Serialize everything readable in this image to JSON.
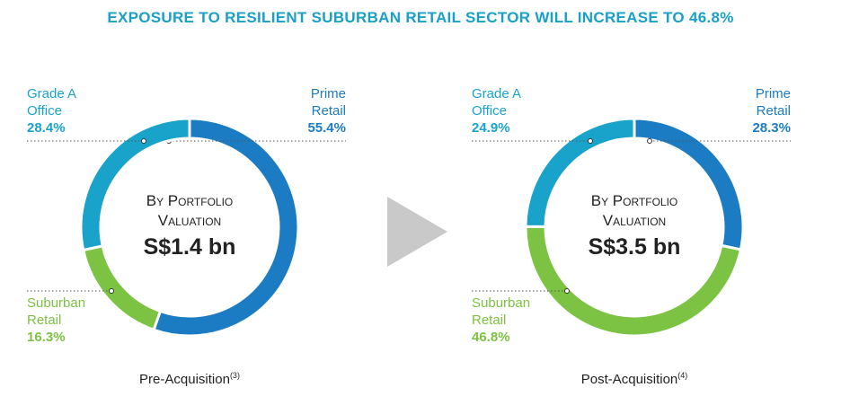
{
  "header": {
    "title": "EXPOSURE TO RESILIENT SUBURBAN RETAIL SECTOR WILL INCREASE TO 46.8%"
  },
  "chart_data": [
    {
      "type": "donut",
      "center_label": "By Portfolio Valuation",
      "center_value": "S$1.4 bn",
      "caption": "Pre-Acquisition",
      "footnote": "(3)",
      "categories": [
        "Prime Retail",
        "Suburban Retail",
        "Grade A Office"
      ],
      "values": [
        55.4,
        16.3,
        28.4
      ],
      "value_labels": [
        "55.4%",
        "16.3%",
        "28.4%"
      ],
      "colors": [
        "#1b7cc4",
        "#7cc243",
        "#1aa3ca"
      ]
    },
    {
      "type": "donut",
      "center_label": "By Portfolio Valuation",
      "center_value": "S$3.5 bn",
      "caption": "Post-Acquisition",
      "footnote": "(4)",
      "categories": [
        "Prime Retail",
        "Suburban Retail",
        "Grade A Office"
      ],
      "values": [
        28.3,
        46.8,
        24.9
      ],
      "value_labels": [
        "28.3%",
        "46.8%",
        "24.9%"
      ],
      "colors": [
        "#1b7cc4",
        "#7cc243",
        "#1aa3ca"
      ]
    }
  ]
}
